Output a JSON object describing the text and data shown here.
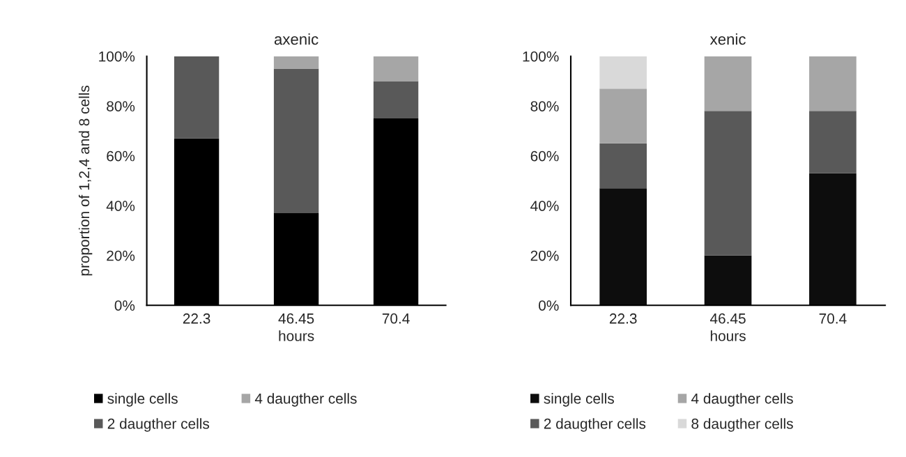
{
  "chart_data": [
    {
      "type": "bar",
      "title": "axenic",
      "xlabel": "hours",
      "ylabel": "proportion of 1,2,4 and 8 cells",
      "stacked": true,
      "categories": [
        "22.3",
        "46.45",
        "70.4"
      ],
      "series": [
        {
          "name": "single cells",
          "color": "#000000",
          "values": [
            67,
            37,
            75
          ]
        },
        {
          "name": "2 daugther cells",
          "color": "#595959",
          "values": [
            33,
            58,
            15
          ]
        },
        {
          "name": "4 daugther cells",
          "color": "#a6a6a6",
          "values": [
            0,
            5,
            10
          ]
        }
      ],
      "ylim": [
        0,
        100
      ],
      "yticks": [
        {
          "value": 0,
          "label": "0%"
        },
        {
          "value": 20,
          "label": "20%"
        },
        {
          "value": 40,
          "label": "40%"
        },
        {
          "value": 60,
          "label": "60%"
        },
        {
          "value": 80,
          "label": "80%"
        },
        {
          "value": 100,
          "label": "100%"
        }
      ],
      "grid": false,
      "legend": "bottom"
    },
    {
      "type": "bar",
      "title": "xenic",
      "xlabel": "hours",
      "stacked": true,
      "categories": [
        "22.3",
        "46.45",
        "70.4"
      ],
      "series": [
        {
          "name": "single cells",
          "color": "#0d0d0d",
          "values": [
            47,
            20,
            53
          ]
        },
        {
          "name": "2 daugther cells",
          "color": "#595959",
          "values": [
            18,
            58,
            25
          ]
        },
        {
          "name": "4 daugther cells",
          "color": "#a6a6a6",
          "values": [
            22,
            22,
            22
          ]
        },
        {
          "name": "8 daugther cells",
          "color": "#d9d9d9",
          "values": [
            13,
            0,
            0
          ]
        }
      ],
      "ylim": [
        0,
        100
      ],
      "yticks": [
        {
          "value": 0,
          "label": "0%"
        },
        {
          "value": 20,
          "label": "20%"
        },
        {
          "value": 40,
          "label": "40%"
        },
        {
          "value": 60,
          "label": "60%"
        },
        {
          "value": 80,
          "label": "80%"
        },
        {
          "value": 100,
          "label": "100%"
        }
      ],
      "grid": false,
      "legend": "bottom"
    }
  ]
}
